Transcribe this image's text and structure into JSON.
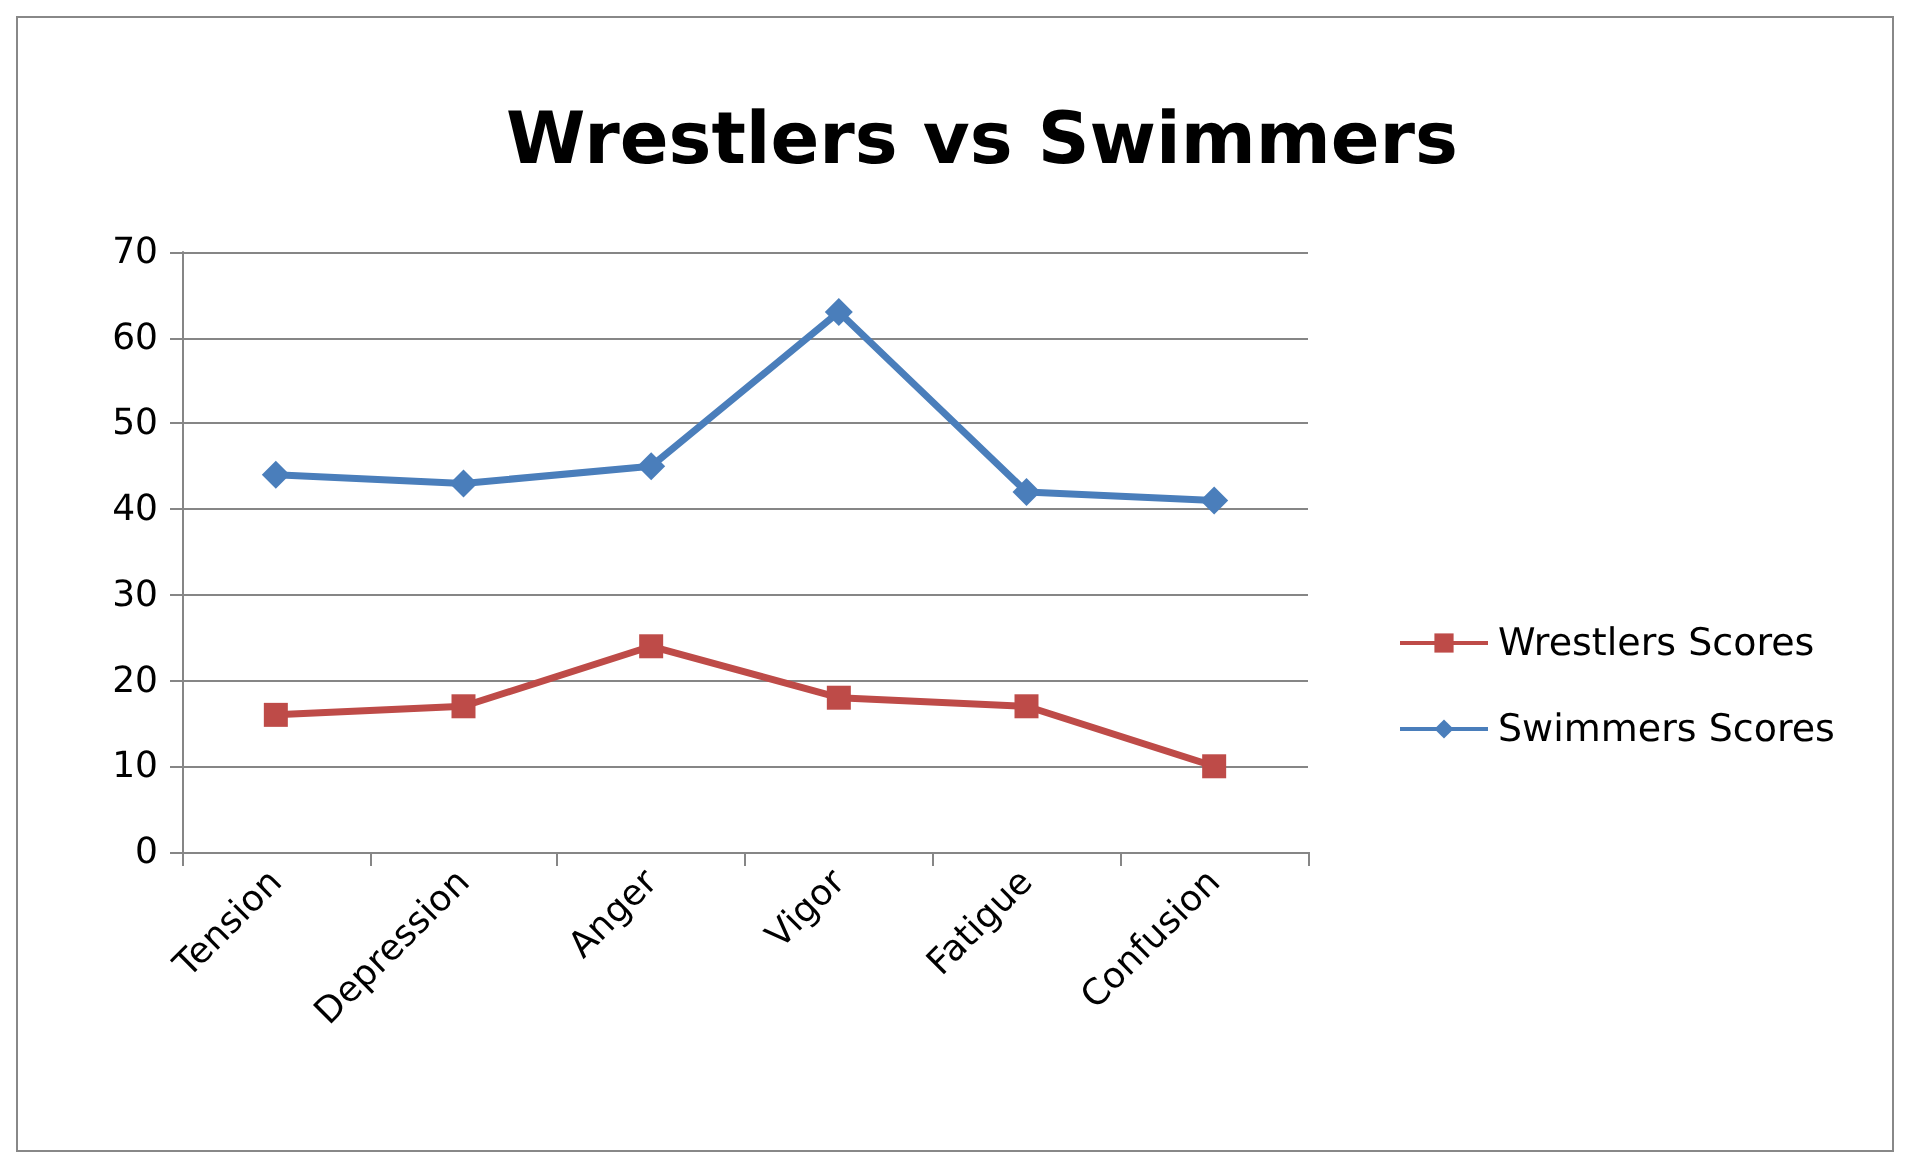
{
  "chart_data": {
    "type": "line",
    "title": "Wrestlers vs Swimmers",
    "categories": [
      "Tension",
      "Depression",
      "Anger",
      "Vigor",
      "Fatigue",
      "Confusion"
    ],
    "series": [
      {
        "name": "Wrestlers Scores",
        "color": "#be4b48",
        "marker": "square",
        "values": [
          16,
          17,
          24,
          18,
          17,
          10
        ]
      },
      {
        "name": "Swimmers Scores",
        "color": "#4a7ebb",
        "marker": "diamond",
        "values": [
          44,
          43,
          45,
          63,
          42,
          41
        ]
      }
    ],
    "ylim": [
      0,
      70
    ],
    "yticks": [
      0,
      10,
      20,
      30,
      40,
      50,
      60,
      70
    ],
    "grid": "y",
    "legend": "right"
  }
}
